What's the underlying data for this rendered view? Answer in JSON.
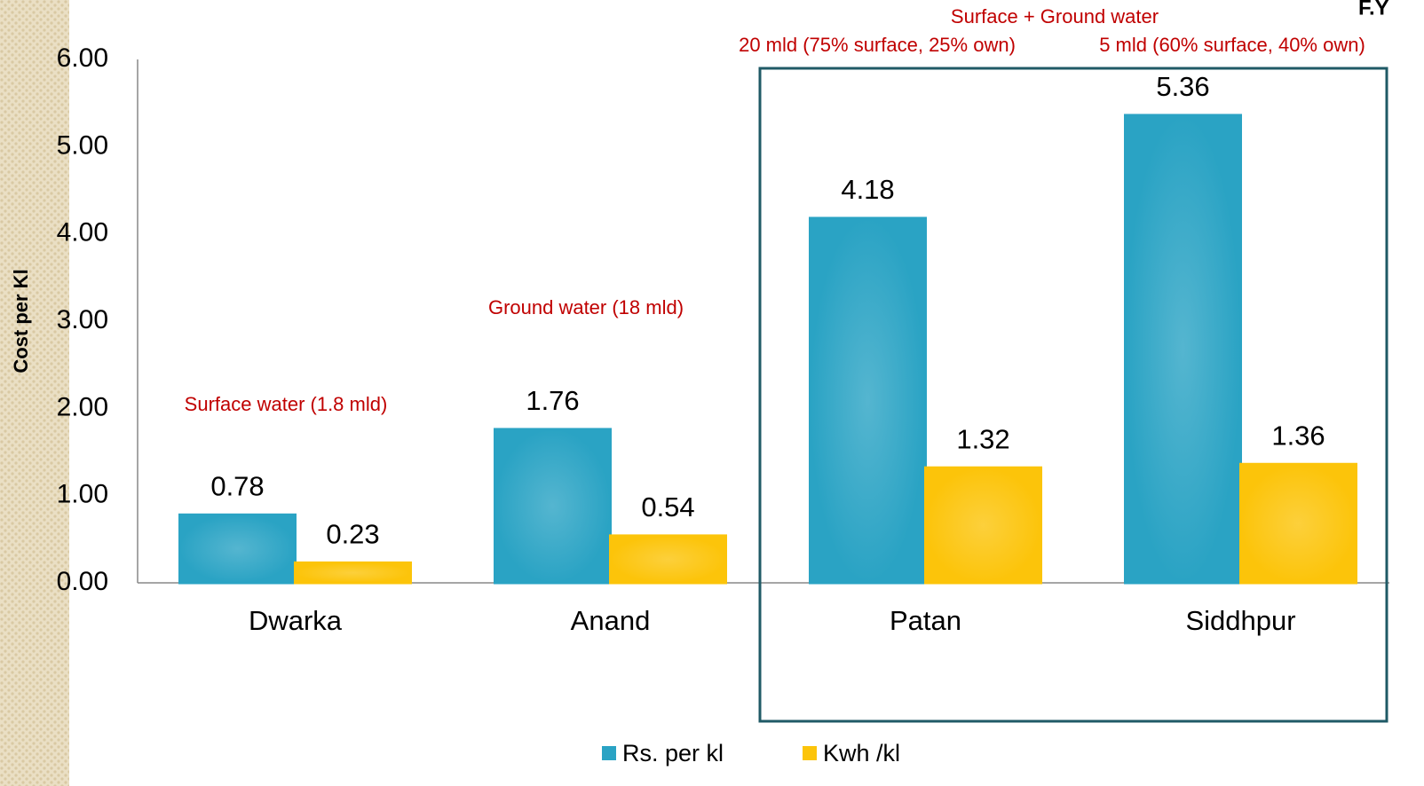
{
  "chart_data": {
    "type": "bar",
    "corner_text": "F.Y",
    "y_label": "Cost per Kl",
    "categories": [
      "Dwarka",
      "Anand",
      "Patan",
      "Siddhpur"
    ],
    "series": [
      {
        "name": "Rs. per kl",
        "color": "#2aa3c4",
        "values": [
          0.78,
          1.76,
          4.18,
          5.36
        ]
      },
      {
        "name": "Kwh /kl",
        "color": "#fcc40a",
        "values": [
          0.23,
          0.54,
          1.32,
          1.36
        ]
      }
    ],
    "ylim": [
      0,
      6
    ],
    "yticks": [
      {
        "value": 0,
        "label": "0.00"
      },
      {
        "value": 1,
        "label": "1.00"
      },
      {
        "value": 2,
        "label": "2.00"
      },
      {
        "value": 3,
        "label": "3.00"
      },
      {
        "value": 4,
        "label": "4.00"
      },
      {
        "value": 5,
        "label": "5.00"
      },
      {
        "value": 6,
        "label": "6.00"
      }
    ],
    "grid": false,
    "legend": "bottom",
    "annotations": [
      "Surface water (1.8 mld)",
      "Ground water (18 mld)",
      "Surface + Ground water",
      "20 mld (75% surface, 25% own)",
      "5 mld (60% surface, 40% own)"
    ]
  }
}
